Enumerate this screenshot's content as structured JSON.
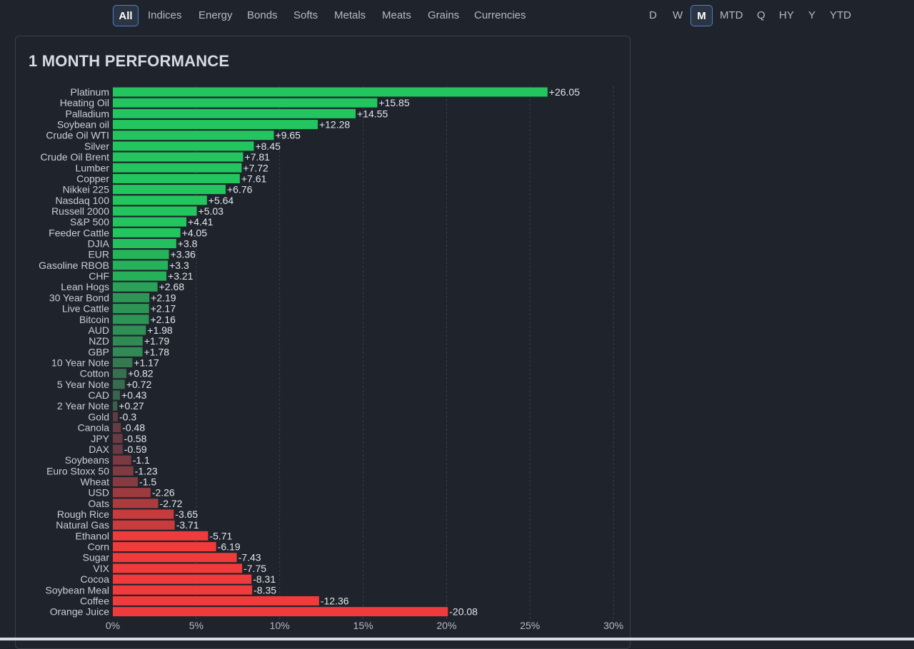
{
  "category_tabs": [
    {
      "label": "All",
      "active": true
    },
    {
      "label": "Indices",
      "active": false
    },
    {
      "label": "Energy",
      "active": false
    },
    {
      "label": "Bonds",
      "active": false
    },
    {
      "label": "Softs",
      "active": false
    },
    {
      "label": "Metals",
      "active": false
    },
    {
      "label": "Meats",
      "active": false
    },
    {
      "label": "Grains",
      "active": false
    },
    {
      "label": "Currencies",
      "active": false
    }
  ],
  "period_tabs": [
    {
      "label": "D",
      "active": false
    },
    {
      "label": "W",
      "active": false
    },
    {
      "label": "M",
      "active": true
    },
    {
      "label": "MTD",
      "active": false
    },
    {
      "label": "Q",
      "active": false
    },
    {
      "label": "HY",
      "active": false
    },
    {
      "label": "Y",
      "active": false
    },
    {
      "label": "YTD",
      "active": false
    }
  ],
  "colors": {
    "positive_strong": "#22c55e",
    "positive_weak": "#3b5a4a",
    "negative_weak": "#5a3a44",
    "negative_strong": "#ef3b3b"
  },
  "chart_data": {
    "type": "bar",
    "orientation": "horizontal",
    "title": "1 MONTH PERFORMANCE",
    "xlabel": "",
    "ylabel": "",
    "xlim": [
      0,
      30
    ],
    "x_ticks": [
      "0%",
      "5%",
      "10%",
      "15%",
      "20%",
      "25%",
      "30%"
    ],
    "bar_length": "absolute value",
    "grid": "vertical dashed",
    "categories": [
      "Platinum",
      "Heating Oil",
      "Palladium",
      "Soybean oil",
      "Crude Oil WTI",
      "Silver",
      "Crude Oil Brent",
      "Lumber",
      "Copper",
      "Nikkei 225",
      "Nasdaq 100",
      "Russell 2000",
      "S&P 500",
      "Feeder Cattle",
      "DJIA",
      "EUR",
      "Gasoline RBOB",
      "CHF",
      "Lean Hogs",
      "30 Year Bond",
      "Live Cattle",
      "Bitcoin",
      "AUD",
      "NZD",
      "GBP",
      "10 Year Note",
      "Cotton",
      "5 Year Note",
      "CAD",
      "2 Year Note",
      "Gold",
      "Canola",
      "JPY",
      "DAX",
      "Soybeans",
      "Euro Stoxx 50",
      "Wheat",
      "USD",
      "Oats",
      "Rough Rice",
      "Natural Gas",
      "Ethanol",
      "Corn",
      "Sugar",
      "VIX",
      "Cocoa",
      "Soybean Meal",
      "Coffee",
      "Orange Juice"
    ],
    "values": [
      26.05,
      15.85,
      14.55,
      12.28,
      9.65,
      8.45,
      7.81,
      7.72,
      7.61,
      6.76,
      5.64,
      5.03,
      4.41,
      4.05,
      3.8,
      3.36,
      3.3,
      3.21,
      2.68,
      2.19,
      2.17,
      2.16,
      1.98,
      1.79,
      1.78,
      1.17,
      0.82,
      0.72,
      0.43,
      0.27,
      -0.3,
      -0.48,
      -0.58,
      -0.59,
      -1.1,
      -1.23,
      -1.5,
      -2.26,
      -2.72,
      -3.65,
      -3.71,
      -5.71,
      -6.19,
      -7.43,
      -7.75,
      -8.31,
      -8.35,
      -12.36,
      -20.08
    ],
    "value_labels": [
      "+26.05",
      "+15.85",
      "+14.55",
      "+12.28",
      "+9.65",
      "+8.45",
      "+7.81",
      "+7.72",
      "+7.61",
      "+6.76",
      "+5.64",
      "+5.03",
      "+4.41",
      "+4.05",
      "+3.8",
      "+3.36",
      "+3.3",
      "+3.21",
      "+2.68",
      "+2.19",
      "+2.17",
      "+2.16",
      "+1.98",
      "+1.79",
      "+1.78",
      "+1.17",
      "+0.82",
      "+0.72",
      "+0.43",
      "+0.27",
      "-0.3",
      "-0.48",
      "-0.58",
      "-0.59",
      "-1.1",
      "-1.23",
      "-1.5",
      "-2.26",
      "-2.72",
      "-3.65",
      "-3.71",
      "-5.71",
      "-6.19",
      "-7.43",
      "-7.75",
      "-8.31",
      "-8.35",
      "-12.36",
      "-20.08"
    ]
  }
}
